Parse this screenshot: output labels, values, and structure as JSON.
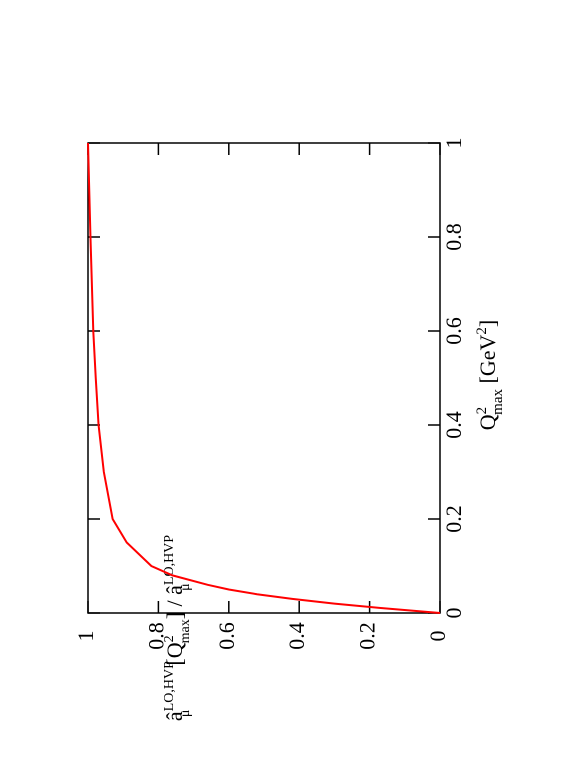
{
  "chart_data": {
    "type": "line",
    "x": [
      0,
      0.005,
      0.01,
      0.02,
      0.03,
      0.04,
      0.05,
      0.06,
      0.08,
      0.1,
      0.15,
      0.2,
      0.3,
      0.4,
      0.5,
      0.6,
      0.8,
      1.0
    ],
    "series": [
      {
        "color": "#ff0000",
        "values": [
          0,
          0.08,
          0.16,
          0.3,
          0.42,
          0.52,
          0.6,
          0.66,
          0.76,
          0.82,
          0.89,
          0.93,
          0.955,
          0.97,
          0.978,
          0.985,
          0.993,
          1
        ]
      }
    ],
    "xlim": [
      0,
      1
    ],
    "xticks": [
      0,
      0.2,
      0.4,
      0.6,
      0.8,
      1
    ],
    "ylim": [
      0,
      1
    ],
    "yticks": [
      0,
      0.2,
      0.4,
      0.6,
      0.8,
      1
    ],
    "xlabel": [
      "Q",
      "2",
      "max",
      " [GeV",
      "2",
      "]"
    ],
    "ylabel": [
      "â",
      "LO,HVP",
      "μ",
      "[Q",
      "2",
      "max",
      "] / â",
      "LO,HVP",
      "μ"
    ]
  }
}
